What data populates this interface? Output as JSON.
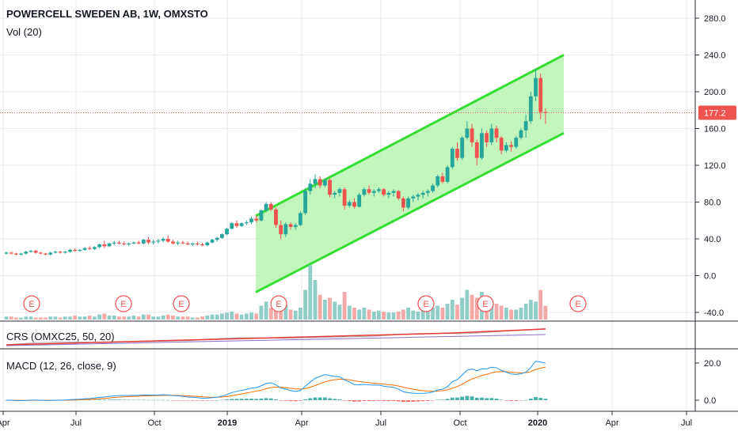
{
  "header": {
    "title": "POWERCELL SWEDEN AB, 1W, OMXSTO",
    "volume_label": "Vol (20)"
  },
  "colors": {
    "up": "#26a69a",
    "down": "#ef5350",
    "vol_up": "#8fcdc6",
    "vol_down": "#f4a9a8",
    "channel_line": "#33dd33",
    "channel_fill": "#b9f5b2",
    "price_line": "#ef5350",
    "crs_line": "#e53935",
    "crs_gray": "#b0b0b0",
    "crs_purple": "#8e6fc8",
    "macd_line": "#2196f3",
    "signal_line": "#ff6d00",
    "grid": "#e8eaed"
  },
  "price_axis": {
    "ticks": [
      "280.0",
      "240.0",
      "200.0",
      "160.0",
      "120.0",
      "80.0",
      "40.0",
      "0.0",
      "-40.0"
    ],
    "last_price": "177.2"
  },
  "time_axis": {
    "ticks": [
      "Apr",
      "Jul",
      "Oct",
      "2019",
      "Apr",
      "Jul",
      "Oct",
      "2020",
      "Apr",
      "Jul"
    ]
  },
  "earnings_marker": "E",
  "crs": {
    "label": "CRS (OMXC25, 50, 20)"
  },
  "macd": {
    "label": "MACD (12, 26, close, 9)",
    "ticks": [
      "20.0",
      "0.0"
    ]
  },
  "chart_data": {
    "type": "candlestick",
    "title": "POWERCELL SWEDEN AB, 1W, OMXSTO",
    "y_range": [
      -50,
      300
    ],
    "last_price": 177.2,
    "channel": {
      "upper": {
        "start": 65,
        "end": 240
      },
      "lower": {
        "start": -18,
        "end": 155
      }
    },
    "candles": [
      [
        24,
        26,
        23,
        25
      ],
      [
        25,
        26,
        23,
        24
      ],
      [
        24,
        25,
        22,
        23
      ],
      [
        23,
        25,
        22,
        24
      ],
      [
        24,
        27,
        23,
        26
      ],
      [
        26,
        28,
        25,
        27
      ],
      [
        27,
        28,
        24,
        25
      ],
      [
        25,
        26,
        23,
        24
      ],
      [
        24,
        25,
        22,
        23
      ],
      [
        23,
        26,
        22,
        25
      ],
      [
        25,
        27,
        24,
        26
      ],
      [
        26,
        27,
        24,
        25
      ],
      [
        25,
        27,
        24,
        26
      ],
      [
        26,
        29,
        25,
        28
      ],
      [
        28,
        30,
        26,
        27
      ],
      [
        27,
        29,
        26,
        28
      ],
      [
        28,
        31,
        27,
        30
      ],
      [
        30,
        32,
        28,
        29
      ],
      [
        29,
        32,
        28,
        31
      ],
      [
        31,
        35,
        30,
        34
      ],
      [
        34,
        38,
        30,
        32
      ],
      [
        32,
        36,
        31,
        35
      ],
      [
        35,
        38,
        33,
        36
      ],
      [
        36,
        38,
        34,
        35
      ],
      [
        35,
        37,
        33,
        34
      ],
      [
        34,
        36,
        32,
        35
      ],
      [
        35,
        37,
        34,
        36
      ],
      [
        36,
        38,
        34,
        35
      ],
      [
        35,
        40,
        34,
        39
      ],
      [
        39,
        42,
        34,
        36
      ],
      [
        36,
        39,
        34,
        37
      ],
      [
        37,
        40,
        35,
        38
      ],
      [
        38,
        42,
        36,
        40
      ],
      [
        40,
        44,
        36,
        37
      ],
      [
        37,
        39,
        34,
        35
      ],
      [
        35,
        38,
        33,
        36
      ],
      [
        36,
        38,
        34,
        35
      ],
      [
        35,
        37,
        33,
        34
      ],
      [
        34,
        36,
        32,
        35
      ],
      [
        35,
        37,
        33,
        34
      ],
      [
        34,
        36,
        32,
        33
      ],
      [
        33,
        37,
        32,
        36
      ],
      [
        36,
        40,
        35,
        39
      ],
      [
        39,
        42,
        37,
        41
      ],
      [
        41,
        46,
        40,
        45
      ],
      [
        45,
        52,
        44,
        51
      ],
      [
        51,
        58,
        50,
        57
      ],
      [
        57,
        60,
        52,
        54
      ],
      [
        54,
        58,
        53,
        57
      ],
      [
        57,
        60,
        55,
        58
      ],
      [
        58,
        64,
        56,
        62
      ],
      [
        62,
        66,
        58,
        60
      ],
      [
        60,
        72,
        59,
        71
      ],
      [
        71,
        80,
        69,
        78
      ],
      [
        78,
        80,
        70,
        72
      ],
      [
        72,
        74,
        52,
        55
      ],
      [
        55,
        60,
        40,
        45
      ],
      [
        45,
        58,
        42,
        56
      ],
      [
        56,
        58,
        50,
        53
      ],
      [
        53,
        57,
        50,
        55
      ],
      [
        55,
        70,
        54,
        68
      ],
      [
        68,
        95,
        66,
        92
      ],
      [
        92,
        105,
        88,
        100
      ],
      [
        100,
        110,
        95,
        105
      ],
      [
        105,
        108,
        95,
        98
      ],
      [
        98,
        106,
        96,
        104
      ],
      [
        104,
        106,
        85,
        88
      ],
      [
        88,
        92,
        84,
        90
      ],
      [
        90,
        96,
        86,
        94
      ],
      [
        94,
        96,
        72,
        76
      ],
      [
        76,
        82,
        74,
        80
      ],
      [
        80,
        84,
        73,
        75
      ],
      [
        75,
        90,
        74,
        88
      ],
      [
        88,
        96,
        86,
        94
      ],
      [
        94,
        98,
        88,
        90
      ],
      [
        90,
        94,
        86,
        92
      ],
      [
        92,
        96,
        90,
        94
      ],
      [
        94,
        95,
        86,
        88
      ],
      [
        88,
        92,
        84,
        90
      ],
      [
        90,
        94,
        86,
        92
      ],
      [
        92,
        93,
        82,
        84
      ],
      [
        84,
        86,
        70,
        74
      ],
      [
        74,
        86,
        72,
        84
      ],
      [
        84,
        88,
        80,
        86
      ],
      [
        86,
        90,
        82,
        88
      ],
      [
        88,
        92,
        84,
        90
      ],
      [
        90,
        94,
        86,
        92
      ],
      [
        92,
        100,
        90,
        98
      ],
      [
        98,
        110,
        96,
        108
      ],
      [
        108,
        112,
        100,
        102
      ],
      [
        102,
        120,
        100,
        118
      ],
      [
        118,
        140,
        116,
        138
      ],
      [
        138,
        145,
        125,
        128
      ],
      [
        128,
        152,
        126,
        150
      ],
      [
        150,
        168,
        148,
        160
      ],
      [
        160,
        165,
        140,
        145
      ],
      [
        145,
        148,
        120,
        128
      ],
      [
        128,
        160,
        126,
        155
      ],
      [
        155,
        158,
        140,
        145
      ],
      [
        145,
        165,
        142,
        160
      ],
      [
        160,
        163,
        145,
        150
      ],
      [
        150,
        152,
        132,
        136
      ],
      [
        136,
        145,
        134,
        142
      ],
      [
        142,
        146,
        135,
        140
      ],
      [
        140,
        152,
        138,
        150
      ],
      [
        150,
        160,
        148,
        158
      ],
      [
        158,
        175,
        150,
        168
      ],
      [
        168,
        200,
        165,
        195
      ],
      [
        195,
        225,
        190,
        215
      ],
      [
        215,
        220,
        170,
        178
      ],
      [
        178,
        182,
        165,
        177
      ]
    ],
    "volumes": [
      3,
      3,
      2,
      2,
      3,
      3,
      2,
      2,
      2,
      3,
      3,
      2,
      3,
      3,
      4,
      3,
      3,
      4,
      3,
      5,
      6,
      4,
      4,
      3,
      3,
      3,
      4,
      3,
      5,
      5,
      3,
      3,
      4,
      5,
      4,
      3,
      3,
      3,
      2,
      2,
      3,
      4,
      5,
      5,
      6,
      7,
      8,
      6,
      5,
      6,
      7,
      6,
      14,
      18,
      12,
      16,
      20,
      15,
      10,
      9,
      12,
      30,
      55,
      40,
      25,
      20,
      22,
      18,
      15,
      28,
      14,
      12,
      10,
      12,
      10,
      8,
      9,
      8,
      7,
      7,
      8,
      10,
      12,
      9,
      8,
      9,
      10,
      12,
      14,
      12,
      16,
      20,
      15,
      22,
      30,
      25,
      22,
      28,
      24,
      18,
      16,
      14,
      12,
      10,
      10,
      12,
      16,
      20,
      18,
      30,
      14
    ]
  }
}
